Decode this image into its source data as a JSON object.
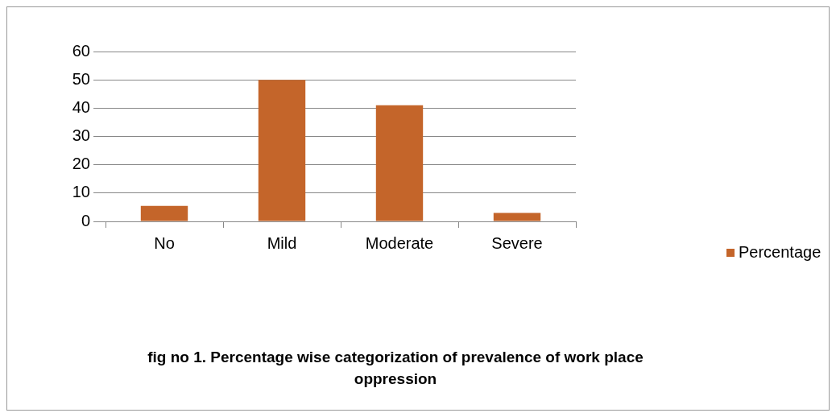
{
  "chart_data": {
    "type": "bar",
    "title": "fig no 1. Percentage wise categorization of prevalence of work place oppression",
    "categories": [
      "No",
      "Mild",
      "Moderate",
      "Severe"
    ],
    "series": [
      {
        "name": "Percentage",
        "color": "#c4652a",
        "values": [
          5.5,
          50,
          41,
          3
        ]
      }
    ],
    "ylim": [
      0,
      60
    ],
    "yticks": [
      0,
      10,
      20,
      30,
      40,
      50,
      60
    ],
    "grid": "y",
    "legend": "right"
  }
}
